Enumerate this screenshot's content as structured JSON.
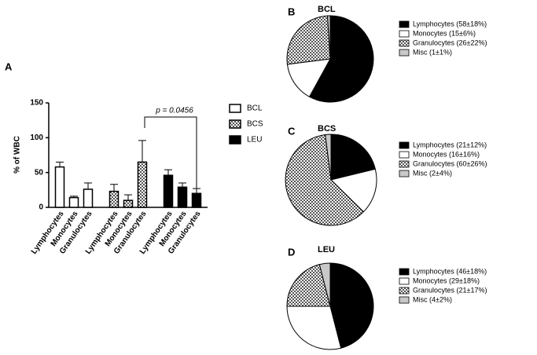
{
  "chart_data": [
    {
      "type": "bar",
      "panel": "A",
      "ylabel": "% of WBC",
      "ylim": [
        0,
        150
      ],
      "yticks": [
        0,
        50,
        100,
        150
      ],
      "annotation": "p = 0.0456",
      "edgecolor": "#000000",
      "series": [
        {
          "name": "BCL",
          "fill": "#ffffff",
          "categories": [
            "Lymphocytes",
            "Monocytes",
            "Granulocytes"
          ],
          "values": [
            58,
            14,
            26
          ],
          "errors": [
            7,
            2,
            9
          ]
        },
        {
          "name": "BCS",
          "fill": "checker",
          "categories": [
            "Lymphocytes",
            "Monocytes",
            "Granulocytes"
          ],
          "values": [
            23,
            10,
            65
          ],
          "errors": [
            10,
            8,
            31
          ]
        },
        {
          "name": "LEU",
          "fill": "#000000",
          "categories": [
            "Lymphocytes",
            "Monocytes",
            "Granulocytes"
          ],
          "values": [
            46,
            29,
            20
          ],
          "errors": [
            8,
            6,
            7
          ]
        }
      ]
    },
    {
      "type": "pie",
      "panel": "B",
      "title": "BCL",
      "values": [
        58,
        15,
        26,
        1
      ],
      "labels": [
        "Lymphocytes (58±18%)",
        "Monocytes (15±6%)",
        "Granulocytes (26±22%)",
        "Misc (1±1%)"
      ],
      "fills": [
        "#000000",
        "#ffffff",
        "checker",
        "#c8c8c8"
      ]
    },
    {
      "type": "pie",
      "panel": "C",
      "title": "BCS",
      "values": [
        21,
        16,
        60,
        2
      ],
      "labels": [
        "Lymphocytes (21±12%)",
        "Monocytes (16±16%)",
        "Granulocytes (60±26%)",
        "Misc (2±4%)"
      ],
      "fills": [
        "#000000",
        "#ffffff",
        "checker",
        "#c8c8c8"
      ]
    },
    {
      "type": "pie",
      "panel": "D",
      "title": "LEU",
      "values": [
        46,
        29,
        21,
        4
      ],
      "labels": [
        "Lymphocytes (46±18%)",
        "Monocytes (29±18%)",
        "Granulocytes (21±17%)",
        "Misc (4±2%)"
      ],
      "fills": [
        "#000000",
        "#ffffff",
        "checker",
        "#c8c8c8"
      ]
    }
  ]
}
